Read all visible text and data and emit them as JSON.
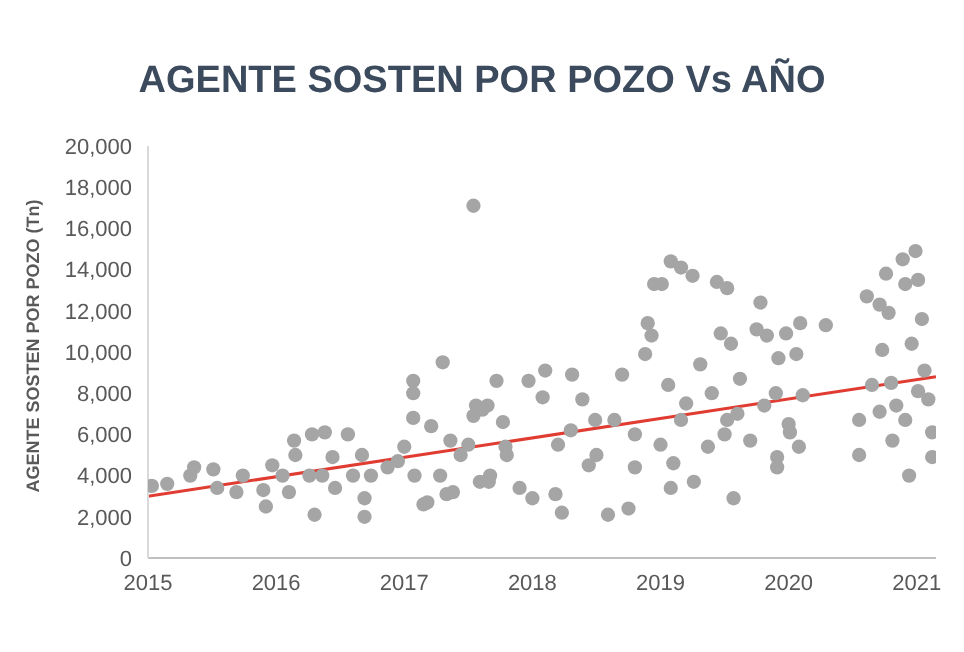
{
  "chart_data": {
    "type": "scatter",
    "title": "AGENTE SOSTEN POR POZO Vs AÑO",
    "ylabel": "AGENTE SOSTEN POR POZO (Tn)",
    "marker": "circle",
    "xlim": [
      2015,
      2021.15
    ],
    "xticks": [
      2015,
      2016,
      2017,
      2018,
      2019,
      2020,
      2021
    ],
    "ylim": [
      0,
      20000
    ],
    "yticks": [
      0,
      {
        "value": 2000,
        "label": "2,000"
      },
      {
        "value": 4000,
        "label": "4,000"
      },
      {
        "value": 6000,
        "label": "6,000"
      },
      {
        "value": 8000,
        "label": "8,000"
      },
      {
        "value": 10000,
        "label": "10,000"
      },
      {
        "value": 12000,
        "label": "12,000"
      },
      {
        "value": 14000,
        "label": "14,000"
      },
      {
        "value": 16000,
        "label": "16,000"
      },
      {
        "value": 18000,
        "label": "18,000"
      },
      {
        "value": 20000,
        "label": "20,000"
      }
    ],
    "series": [
      {
        "color": "#a5a5a5",
        "x": [
          2015.03,
          2015.15,
          2015.36,
          2015.33,
          2015.51,
          2015.54,
          2015.69,
          2015.74,
          2015.9,
          2015.92,
          2015.97,
          2016.05,
          2016.1,
          2016.14,
          2016.15,
          2016.26,
          2016.28,
          2016.3,
          2016.36,
          2016.38,
          2016.44,
          2016.46,
          2016.56,
          2016.6,
          2016.67,
          2016.69,
          2016.69,
          2016.74,
          2016.87,
          2016.95,
          2017.0,
          2017.07,
          2017.07,
          2017.07,
          2017.08,
          2017.15,
          2017.21,
          2017.28,
          2017.3,
          2017.33,
          2017.36,
          2017.38,
          2017.44,
          2017.54,
          2017.54,
          2017.56,
          2017.59,
          2017.67,
          2017.65,
          2017.72,
          2017.77,
          2017.79,
          2017.18,
          2017.61,
          2017.66,
          2017.9,
          2017.97,
          2018.08,
          2018.1,
          2018.0,
          2018.18,
          2018.23,
          2018.31,
          2018.39,
          2018.44,
          2018.49,
          2018.59,
          2018.64,
          2018.7,
          2018.75,
          2018.8,
          2018.9,
          2018.93,
          2018.88,
          2018.95,
          2019.01,
          2019.08,
          2019.16,
          2019.25,
          2019.06,
          2019.08,
          2019.16,
          2019.26,
          2019.31,
          2019.37,
          2019.44,
          2019.52,
          2019.47,
          2019.55,
          2019.52,
          2019.57,
          2019.62,
          2019.7,
          2019.75,
          2019.78,
          2019.81,
          2019.83,
          2019.91,
          2019.91,
          2019.92,
          2019.98,
          2020.01,
          2020.06,
          2020.09,
          2020.08,
          2020.11,
          2020.29,
          2020.55,
          2020.55,
          2020.61,
          2020.65,
          2020.71,
          2020.73,
          2020.76,
          2020.78,
          2020.81,
          2020.84,
          2020.89,
          2020.91,
          2020.94,
          2020.96,
          2020.99,
          2021.01,
          2021.04,
          2021.06,
          2021.09,
          2021.12,
          2021.12,
          2020.71,
          2020.91,
          2021.01,
          2018.2,
          2018.5,
          2018.8,
          2019.0,
          2019.2,
          2019.4,
          2019.5,
          2019.9,
          2020.0,
          2017.8,
          2017.5,
          2018.3,
          2019.1,
          2019.6,
          2020.8
        ],
        "values": [
          3500,
          3600,
          4400,
          4000,
          4300,
          3400,
          3200,
          4000,
          3300,
          2500,
          4500,
          4000,
          3200,
          5700,
          5000,
          4000,
          6000,
          2100,
          4000,
          6100,
          4900,
          3400,
          6000,
          4000,
          5000,
          2000,
          2900,
          4000,
          4400,
          4700,
          5400,
          8600,
          8000,
          6800,
          4000,
          2600,
          6400,
          4000,
          9500,
          3100,
          5700,
          3200,
          5000,
          17100,
          6900,
          7400,
          3700,
          4000,
          7400,
          8600,
          6600,
          5400,
          2700,
          7200,
          3700,
          3400,
          8600,
          7800,
          9100,
          2900,
          3100,
          2200,
          8900,
          7700,
          4500,
          6700,
          2100,
          6700,
          8900,
          2400,
          4400,
          11400,
          10800,
          9900,
          13300,
          13300,
          14400,
          14100,
          13700,
          8400,
          3400,
          6700,
          3700,
          9400,
          5400,
          13400,
          13100,
          10900,
          10400,
          6700,
          2900,
          8700,
          5700,
          11100,
          12400,
          7400,
          10800,
          4900,
          4400,
          9700,
          10900,
          6100,
          9900,
          11400,
          5400,
          7900,
          11300,
          5000,
          6700,
          12700,
          8400,
          12300,
          10100,
          13800,
          11900,
          5700,
          7400,
          14500,
          13300,
          4000,
          10400,
          14900,
          13500,
          11600,
          9100,
          7700,
          6100,
          4900,
          7100,
          6700,
          8100,
          5500,
          5000,
          6000,
          5500,
          7500,
          8000,
          6000,
          8000,
          6500,
          5000,
          5500,
          6200,
          4600,
          7000,
          8500
        ]
      },
      {
        "type": "line",
        "marker": "none",
        "color": "#e03c31",
        "x": [
          2015,
          2021.15
        ],
        "values": [
          3000,
          8800
        ]
      }
    ]
  }
}
